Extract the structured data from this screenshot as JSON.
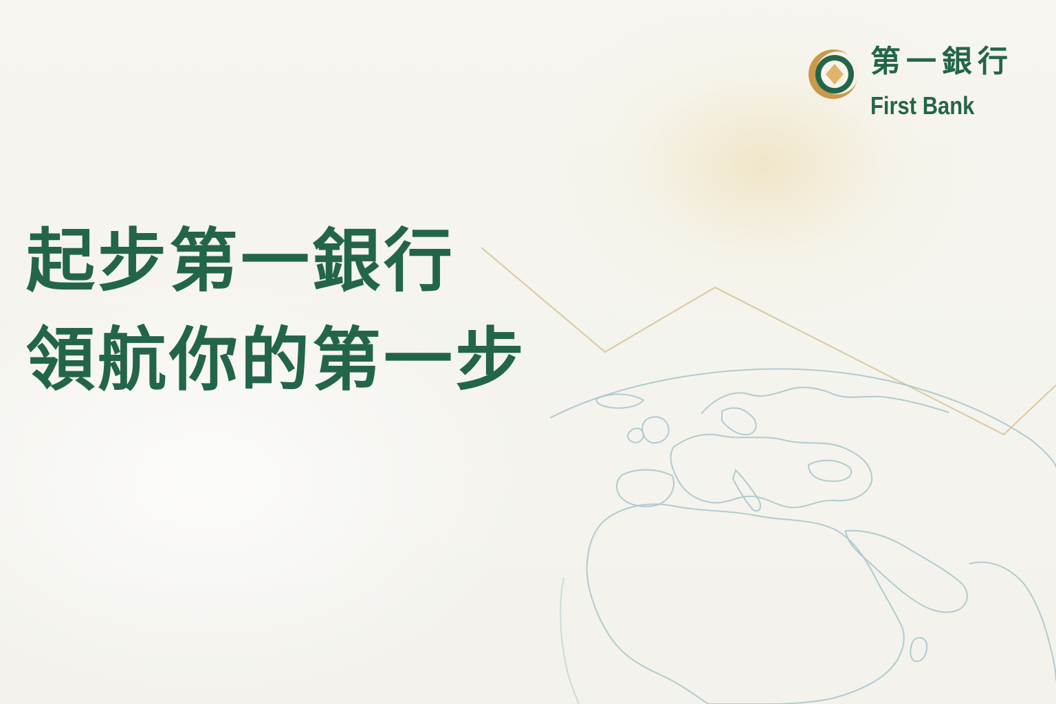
{
  "brand": {
    "name_cn": "第一銀行",
    "name_en": "First Bank",
    "colors": {
      "primary_green": "#23654a",
      "gold": "#c89a48",
      "diamond_gold": "#e0b46a"
    },
    "emblem_icon": "ring-diamond-emblem"
  },
  "headline": {
    "line1": "起步第一銀行",
    "line2": "領航你的第一步"
  },
  "background": {
    "base_color": "#f5f4ef",
    "glow_color": "#ecdaaa",
    "globe_line_color": "#a9c7cc",
    "trend_line_color": "#d7c494",
    "decorations": [
      "world-map-globe-outline",
      "rising-trend-line"
    ]
  }
}
